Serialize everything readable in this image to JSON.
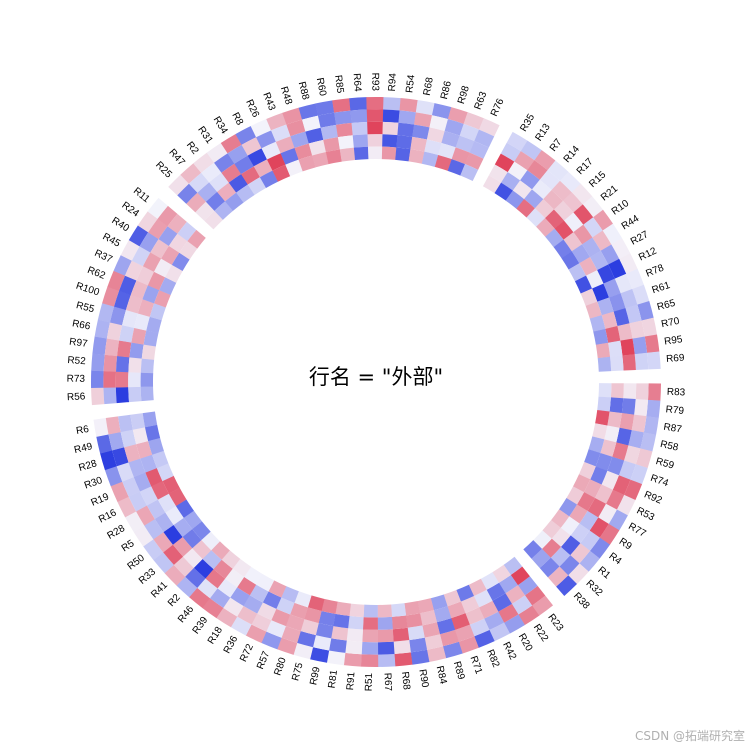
{
  "chart_data": {
    "type": "heatmap",
    "layout": "circular",
    "title": "行名 = \"外部\"",
    "tracks": 5,
    "colors": {
      "low": "#2b3de0",
      "mid": "#f3f3fb",
      "high": "#e0445c"
    },
    "value_range": [
      -2,
      2
    ],
    "sectors": [
      {
        "labels": [
          "R83",
          "R79",
          "R87",
          "R58",
          "R59",
          "R74",
          "R92",
          "R53",
          "R77",
          "R9",
          "R4",
          "R1",
          "R32",
          "R38"
        ]
      },
      {
        "labels": [
          "R23",
          "R22",
          "R20",
          "R42",
          "R82",
          "R71",
          "R89",
          "R84",
          "R90",
          "R68",
          "R67",
          "R51",
          "R91",
          "R81",
          "R99",
          "R75",
          "R80",
          "R57",
          "R72",
          "R36",
          "R18",
          "R39",
          "R46",
          "R2",
          "R41",
          "R33",
          "R50",
          "R5",
          "R28",
          "R16",
          "R19",
          "R30",
          "R28",
          "R49",
          "R6"
        ]
      },
      {
        "labels": [
          "R56",
          "R73",
          "R52",
          "R97",
          "R66",
          "R55",
          "R100",
          "R62",
          "R37",
          "R45",
          "R40",
          "R24",
          "R11"
        ]
      },
      {
        "labels": [
          "R25",
          "R47",
          "R2",
          "R31",
          "R34",
          "R8",
          "R26",
          "R43",
          "R48",
          "R88",
          "R60",
          "R85",
          "R64",
          "R93",
          "R94",
          "R54",
          "R68",
          "R86",
          "R98",
          "R63",
          "R76"
        ]
      },
      {
        "labels": [
          "R35",
          "R13",
          "R7",
          "R14",
          "R17",
          "R15",
          "R21",
          "R10",
          "R44",
          "R27",
          "R12",
          "R78",
          "R61",
          "R65",
          "R70",
          "R95",
          "R69"
        ]
      }
    ]
  },
  "watermark": "CSDN @拓端研究室"
}
